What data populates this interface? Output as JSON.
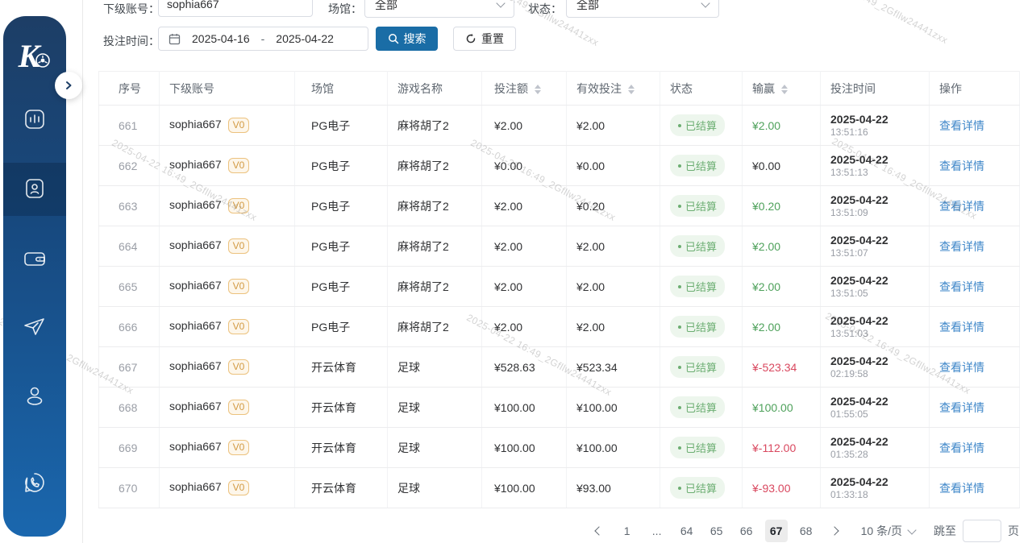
{
  "watermark": {
    "text": "2025-04-22 16:49_2Gfllw24441zxx"
  },
  "colors": {
    "accent_blue": "#1a6da6",
    "sidebar_top": "#1d3e66",
    "sidebar_bottom": "#1a67ae",
    "win_green": "#4ea15b",
    "loss_red": "#d9485f",
    "link_blue": "#3f87c9",
    "badge_orange": "#d29a43",
    "status_green": "#6cae72"
  },
  "sidebar": {
    "logo_letter": "K",
    "items": [
      {
        "name": "stats",
        "icon": "bar-chart-icon",
        "active": false
      },
      {
        "name": "members",
        "icon": "member-card-icon",
        "active": true
      },
      {
        "name": "wallet",
        "icon": "wallet-icon",
        "active": false
      },
      {
        "name": "promotion",
        "icon": "paper-plane-icon",
        "active": false
      },
      {
        "name": "profile",
        "icon": "person-icon",
        "active": false
      },
      {
        "name": "support",
        "icon": "phone-bubble-icon",
        "active": false
      }
    ]
  },
  "filters": {
    "account": {
      "label": "下级账号：",
      "value": "sophia667"
    },
    "venue": {
      "label": "场馆：",
      "value": "全部"
    },
    "status": {
      "label": "状态：",
      "value": "全部"
    },
    "time": {
      "label": "投注时间：",
      "start": "2025-04-16",
      "separator": "-",
      "end": "2025-04-22"
    },
    "search_label": "搜索",
    "reset_label": "重置"
  },
  "table": {
    "columns": [
      {
        "label": "序号",
        "sortable": false
      },
      {
        "label": "下级账号",
        "sortable": false
      },
      {
        "label": "场馆",
        "sortable": false
      },
      {
        "label": "游戏名称",
        "sortable": false
      },
      {
        "label": "投注额",
        "sortable": true
      },
      {
        "label": "有效投注",
        "sortable": true
      },
      {
        "label": "状态",
        "sortable": false
      },
      {
        "label": "输赢",
        "sortable": true
      },
      {
        "label": "投注时间",
        "sortable": false
      },
      {
        "label": "操作",
        "sortable": false
      }
    ],
    "action_label": "查看详情",
    "rows": [
      {
        "no": "661",
        "account": "sophia667",
        "level": "V0",
        "venue": "PG电子",
        "game": "麻将胡了2",
        "bet": "¥2.00",
        "valid": "¥2.00",
        "status": "已结算",
        "winloss": "¥2.00",
        "trend": "pos",
        "date": "2025-04-22",
        "time": "13:51:16"
      },
      {
        "no": "662",
        "account": "sophia667",
        "level": "V0",
        "venue": "PG电子",
        "game": "麻将胡了2",
        "bet": "¥0.00",
        "valid": "¥0.00",
        "status": "已结算",
        "winloss": "¥0.00",
        "trend": "zero",
        "date": "2025-04-22",
        "time": "13:51:13"
      },
      {
        "no": "663",
        "account": "sophia667",
        "level": "V0",
        "venue": "PG电子",
        "game": "麻将胡了2",
        "bet": "¥2.00",
        "valid": "¥0.20",
        "status": "已结算",
        "winloss": "¥0.20",
        "trend": "pos",
        "date": "2025-04-22",
        "time": "13:51:09"
      },
      {
        "no": "664",
        "account": "sophia667",
        "level": "V0",
        "venue": "PG电子",
        "game": "麻将胡了2",
        "bet": "¥2.00",
        "valid": "¥2.00",
        "status": "已结算",
        "winloss": "¥2.00",
        "trend": "pos",
        "date": "2025-04-22",
        "time": "13:51:07"
      },
      {
        "no": "665",
        "account": "sophia667",
        "level": "V0",
        "venue": "PG电子",
        "game": "麻将胡了2",
        "bet": "¥2.00",
        "valid": "¥2.00",
        "status": "已结算",
        "winloss": "¥2.00",
        "trend": "pos",
        "date": "2025-04-22",
        "time": "13:51:05"
      },
      {
        "no": "666",
        "account": "sophia667",
        "level": "V0",
        "venue": "PG电子",
        "game": "麻将胡了2",
        "bet": "¥2.00",
        "valid": "¥2.00",
        "status": "已结算",
        "winloss": "¥2.00",
        "trend": "pos",
        "date": "2025-04-22",
        "time": "13:51:03"
      },
      {
        "no": "667",
        "account": "sophia667",
        "level": "V0",
        "venue": "开云体育",
        "game": "足球",
        "bet": "¥528.63",
        "valid": "¥523.34",
        "status": "已结算",
        "winloss": "¥-523.34",
        "trend": "neg",
        "date": "2025-04-22",
        "time": "02:19:58"
      },
      {
        "no": "668",
        "account": "sophia667",
        "level": "V0",
        "venue": "开云体育",
        "game": "足球",
        "bet": "¥100.00",
        "valid": "¥100.00",
        "status": "已结算",
        "winloss": "¥100.00",
        "trend": "pos",
        "date": "2025-04-22",
        "time": "01:55:05"
      },
      {
        "no": "669",
        "account": "sophia667",
        "level": "V0",
        "venue": "开云体育",
        "game": "足球",
        "bet": "¥100.00",
        "valid": "¥100.00",
        "status": "已结算",
        "winloss": "¥-112.00",
        "trend": "neg",
        "date": "2025-04-22",
        "time": "01:35:28"
      },
      {
        "no": "670",
        "account": "sophia667",
        "level": "V0",
        "venue": "开云体育",
        "game": "足球",
        "bet": "¥100.00",
        "valid": "¥93.00",
        "status": "已结算",
        "winloss": "¥-93.00",
        "trend": "neg",
        "date": "2025-04-22",
        "time": "01:33:18"
      }
    ]
  },
  "pagination": {
    "pages": [
      {
        "label": "1",
        "active": false,
        "ellipsis": false
      },
      {
        "label": "...",
        "active": false,
        "ellipsis": true
      },
      {
        "label": "64",
        "active": false,
        "ellipsis": false
      },
      {
        "label": "65",
        "active": false,
        "ellipsis": false
      },
      {
        "label": "66",
        "active": false,
        "ellipsis": false
      },
      {
        "label": "67",
        "active": true,
        "ellipsis": false
      },
      {
        "label": "68",
        "active": false,
        "ellipsis": false
      }
    ],
    "page_size": "10 条/页",
    "jump_label": "跳至",
    "jump_value": "",
    "jump_unit": "页"
  }
}
